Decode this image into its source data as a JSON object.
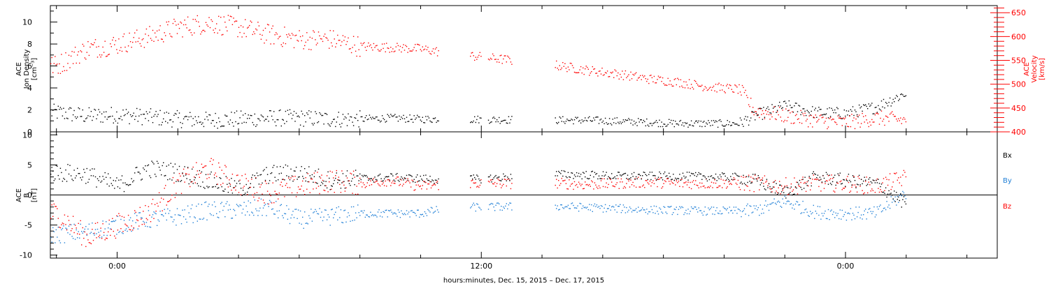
{
  "figure": {
    "xlabel": "hours:minutes, Dec. 15, 2015 – Dec. 17, 2015",
    "x_ticks": [
      "0:00",
      "12:00",
      "0:00"
    ]
  },
  "colors": {
    "black": "#000000",
    "red": "#ff0000",
    "blue": "#1f7fd6"
  },
  "chart_data": [
    {
      "type": "scatter",
      "panel": "top",
      "x_unit": "hours from 0:00 Dec. 16, 2015",
      "xlim": [
        -2.2,
        29.0
      ],
      "left_axis": {
        "label_lines": [
          "ACE",
          "Ion Density",
          "[cm⁻³]"
        ],
        "ylim": [
          0,
          11.5
        ],
        "ticks": [
          0,
          2,
          4,
          6,
          8,
          10
        ]
      },
      "right_axis": {
        "label_lines": [
          "ACE",
          "Velocity",
          "[km/s]"
        ],
        "ylim": [
          400,
          665
        ],
        "ticks": [
          400,
          450,
          500,
          550,
          600,
          650
        ]
      },
      "series": [
        {
          "color": "black",
          "axis": "left",
          "x": [
            -2.0,
            -1.0,
            0.0,
            1.0,
            2.0,
            3.0,
            4.0,
            5.0,
            6.0,
            7.0,
            8.0,
            9.0,
            10.0,
            11.0,
            14.5,
            15.5,
            16.5,
            17.5,
            18.5,
            19.5,
            20.5,
            21.0,
            22.0,
            23.0,
            24.0,
            25.0,
            26.0
          ],
          "values": [
            1.8,
            1.5,
            1.6,
            1.4,
            1.2,
            1.1,
            1.2,
            1.3,
            1.3,
            1.2,
            1.2,
            1.3,
            1.2,
            1.2,
            1.1,
            1.1,
            1.0,
            0.9,
            0.8,
            0.8,
            0.8,
            1.5,
            2.4,
            1.8,
            1.7,
            2.3,
            3.6
          ]
        },
        {
          "color": "red",
          "axis": "right",
          "x": [
            -2.0,
            -1.0,
            0.0,
            1.0,
            2.0,
            3.0,
            4.0,
            5.0,
            6.0,
            7.0,
            8.0,
            9.0,
            10.0,
            11.0,
            14.5,
            15.5,
            16.5,
            17.5,
            18.5,
            19.5,
            20.5,
            21.0,
            22.0,
            23.0,
            24.0,
            25.0,
            26.0
          ],
          "values": [
            540,
            575,
            585,
            600,
            620,
            630,
            620,
            605,
            595,
            595,
            580,
            578,
            575,
            565,
            540,
            530,
            522,
            512,
            505,
            495,
            490,
            445,
            435,
            425,
            420,
            430,
            425
          ]
        }
      ]
    },
    {
      "type": "scatter",
      "panel": "bottom",
      "x_unit": "hours from 0:00 Dec. 16, 2015",
      "xlim": [
        -2.2,
        29.0
      ],
      "left_axis": {
        "label_lines": [
          "ACE",
          "B",
          "[nT]"
        ],
        "ylim": [
          -10.5,
          10.5
        ],
        "ticks": [
          -10,
          -5,
          0,
          5,
          10
        ]
      },
      "zero_line": true,
      "legend": [
        "Bx",
        "By",
        "Bz"
      ],
      "series": [
        {
          "name": "Bx",
          "color": "black",
          "x": [
            -2.0,
            -1.0,
            0.0,
            1.0,
            2.0,
            3.0,
            4.0,
            5.0,
            6.0,
            7.0,
            8.0,
            9.0,
            10.0,
            11.0,
            14.5,
            15.5,
            16.5,
            17.5,
            18.5,
            19.5,
            20.5,
            21.0,
            22.0,
            23.0,
            24.0,
            25.0,
            26.0
          ],
          "values": [
            3.8,
            3.5,
            1.5,
            4.5,
            3.8,
            2.5,
            1.0,
            3.5,
            3.8,
            2.5,
            2.8,
            3.0,
            2.8,
            2.5,
            3.5,
            3.4,
            3.2,
            3.2,
            3.2,
            3.1,
            3.0,
            2.5,
            0.5,
            3.0,
            2.5,
            2.0,
            -1.5
          ]
        },
        {
          "name": "By",
          "color": "blue",
          "x": [
            -2.0,
            -1.0,
            0.0,
            1.0,
            2.0,
            3.0,
            4.0,
            5.0,
            6.0,
            7.0,
            8.0,
            9.0,
            10.0,
            11.0,
            14.5,
            15.5,
            16.5,
            17.5,
            18.5,
            19.5,
            20.5,
            21.0,
            22.0,
            23.0,
            24.0,
            25.0,
            26.0
          ],
          "values": [
            -6.5,
            -6.0,
            -5.0,
            -4.0,
            -3.5,
            -2.5,
            -2.5,
            -2.0,
            -4.0,
            -3.5,
            -3.0,
            -3.0,
            -3.0,
            -2.0,
            -1.8,
            -2.0,
            -2.2,
            -2.4,
            -2.5,
            -2.6,
            -2.6,
            -2.5,
            -1.0,
            -2.8,
            -3.0,
            -3.0,
            0.5
          ]
        },
        {
          "name": "Bz",
          "color": "red",
          "x": [
            -2.0,
            -1.0,
            0.0,
            1.0,
            2.0,
            3.0,
            4.0,
            5.0,
            6.0,
            7.0,
            8.0,
            9.0,
            10.0,
            11.0,
            14.5,
            15.5,
            16.5,
            17.5,
            18.5,
            19.5,
            20.5,
            21.0,
            22.0,
            23.0,
            24.0,
            25.0,
            26.0
          ],
          "values": [
            -3.0,
            -7.0,
            -5.0,
            -3.0,
            2.0,
            4.5,
            2.0,
            0.5,
            1.5,
            2.5,
            2.0,
            2.5,
            1.5,
            2.0,
            2.0,
            1.8,
            2.0,
            2.2,
            2.0,
            2.0,
            2.1,
            2.0,
            1.5,
            2.0,
            2.0,
            1.5,
            3.0
          ]
        }
      ]
    }
  ]
}
